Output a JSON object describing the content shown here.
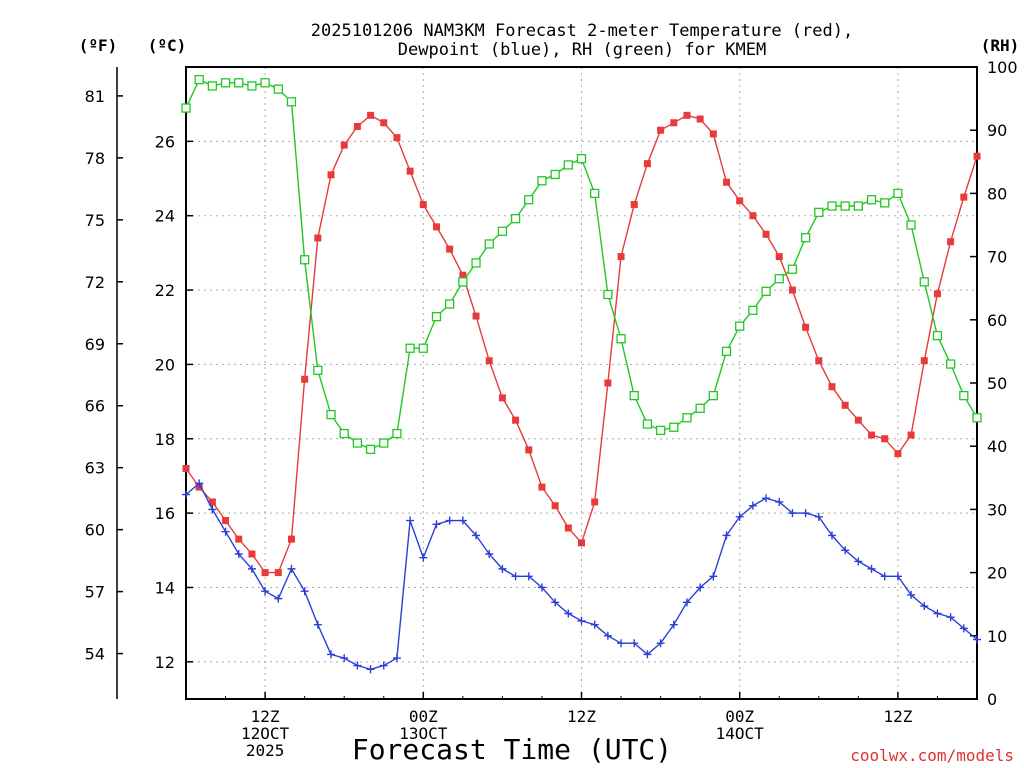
{
  "chart_data": {
    "type": "line",
    "title_line1": "2025101206 NAM3KM Forecast 2-meter Temperature (red),",
    "title_line2": "Dewpoint (blue), RH (green) for KMEM",
    "xlabel": "Forecast Time (UTC)",
    "credit": "coolwx.com/models",
    "unit_labels": {
      "fahrenheit": "(ºF)",
      "celsius": "(ºC)",
      "rh": "(RH)"
    },
    "celsius_ylim": [
      11,
      28
    ],
    "rh_ylim": [
      0,
      100
    ],
    "fahrenheit_ticks": [
      54,
      57,
      60,
      63,
      66,
      69,
      72,
      75,
      78,
      81
    ],
    "celsius_ticks": [
      12,
      14,
      16,
      18,
      20,
      22,
      24,
      26
    ],
    "rh_ticks": [
      0,
      10,
      20,
      30,
      40,
      50,
      60,
      70,
      80,
      90,
      100
    ],
    "x_start_hour": 6,
    "x_end_hour": 66,
    "x_ticks": [
      {
        "hour": 12,
        "lines": [
          "12Z",
          "12OCT",
          "2025"
        ]
      },
      {
        "hour": 24,
        "lines": [
          "00Z",
          "13OCT"
        ]
      },
      {
        "hour": 36,
        "lines": [
          "12Z"
        ]
      },
      {
        "hour": 48,
        "lines": [
          "00Z",
          "14OCT"
        ]
      },
      {
        "hour": 60,
        "lines": [
          "12Z"
        ]
      }
    ],
    "hours": [
      6,
      7,
      8,
      9,
      10,
      11,
      12,
      13,
      14,
      15,
      16,
      17,
      18,
      19,
      20,
      21,
      22,
      23,
      24,
      25,
      26,
      27,
      28,
      29,
      30,
      31,
      32,
      33,
      34,
      35,
      36,
      37,
      38,
      39,
      40,
      41,
      42,
      43,
      44,
      45,
      46,
      47,
      48,
      49,
      50,
      51,
      52,
      53,
      54,
      55,
      56,
      57,
      58,
      59,
      60,
      61,
      62,
      63,
      64,
      65,
      66
    ],
    "series": [
      {
        "name": "Temperature",
        "unit": "°C",
        "color": "#e83a3a",
        "marker": "filled-square",
        "values": [
          17.2,
          16.7,
          16.3,
          15.8,
          15.3,
          14.9,
          14.4,
          14.4,
          15.3,
          19.6,
          23.4,
          25.1,
          25.9,
          26.4,
          26.7,
          26.5,
          26.1,
          25.2,
          24.3,
          23.7,
          23.1,
          22.4,
          21.3,
          20.1,
          19.1,
          18.5,
          17.7,
          16.7,
          16.2,
          15.6,
          15.2,
          16.3,
          19.5,
          22.9,
          24.3,
          25.4,
          26.3,
          26.5,
          26.7,
          26.6,
          26.2,
          24.9,
          24.4,
          24.0,
          23.5,
          22.9,
          22.0,
          21.0,
          20.1,
          19.4,
          18.9,
          18.5,
          18.1,
          18.0,
          17.6,
          18.1,
          20.1,
          21.9,
          23.3,
          24.5,
          25.6
        ]
      },
      {
        "name": "Dewpoint",
        "unit": "°C",
        "color": "#2b3fd8",
        "marker": "plus",
        "values": [
          16.5,
          16.8,
          16.1,
          15.5,
          14.9,
          14.5,
          13.9,
          13.7,
          14.5,
          13.9,
          13.0,
          12.2,
          12.1,
          11.9,
          11.8,
          11.9,
          12.1,
          15.8,
          14.8,
          15.7,
          15.8,
          15.8,
          15.4,
          14.9,
          14.5,
          14.3,
          14.3,
          14.0,
          13.6,
          13.3,
          13.1,
          13.0,
          12.7,
          12.5,
          12.5,
          12.2,
          12.5,
          13.0,
          13.6,
          14.0,
          14.3,
          15.4,
          15.9,
          16.2,
          16.4,
          16.3,
          16.0,
          16.0,
          15.9,
          15.4,
          15.0,
          14.7,
          14.5,
          14.3,
          14.3,
          13.8,
          13.5,
          13.3,
          13.2,
          12.9,
          12.6
        ]
      },
      {
        "name": "RH",
        "unit": "%",
        "color": "#22c822",
        "marker": "open-square",
        "values": [
          93.5,
          98,
          97,
          97.5,
          97.5,
          97,
          97.5,
          96.5,
          94.5,
          69.5,
          52,
          45,
          42,
          40.5,
          39.5,
          40.5,
          42,
          55.5,
          55.5,
          60.5,
          62.5,
          66,
          69,
          72,
          74,
          76,
          79,
          82,
          83,
          84.5,
          85.5,
          80,
          64,
          57,
          48,
          43.5,
          42.5,
          43,
          44.5,
          46,
          48,
          55,
          59,
          61.5,
          64.5,
          66.5,
          68,
          73,
          77,
          78,
          78,
          78,
          79,
          78.5,
          80,
          75,
          66,
          57.5,
          53,
          48,
          44.5
        ]
      }
    ]
  }
}
